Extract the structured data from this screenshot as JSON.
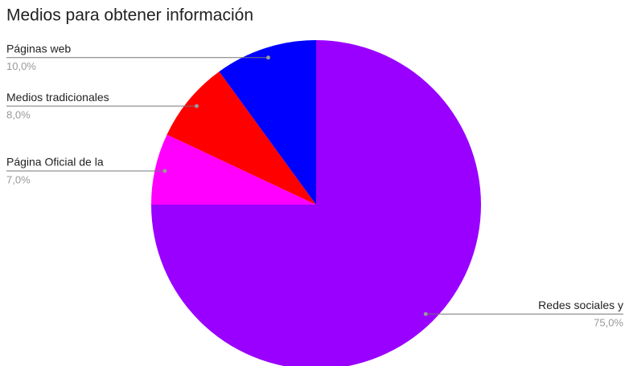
{
  "chart_data": {
    "type": "pie",
    "title": "Medios para obtener información",
    "categories": [
      "Redes sociales y",
      "Página Oficial de la",
      "Medios tradicionales",
      "Páginas web"
    ],
    "values": [
      75,
      7,
      8,
      10
    ],
    "value_labels": [
      "75,0%",
      "7,0%",
      "8,0%",
      "10,0%"
    ],
    "colors": [
      "#9900ff",
      "#ff00ff",
      "#ff0000",
      "#0000ff"
    ]
  }
}
